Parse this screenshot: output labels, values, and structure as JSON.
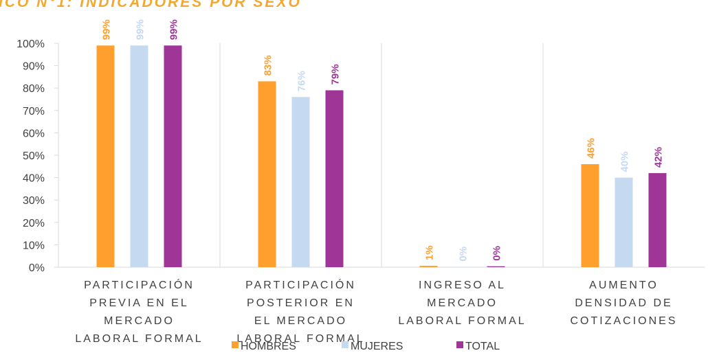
{
  "chart_data": {
    "type": "bar",
    "title": "ICO N°1: INDICADORES POR SEXO",
    "categories": [
      "PARTICIPACIÓN PREVIA EN EL MERCADO LABORAL FORMAL",
      "PARTICIPACIÓN POSTERIOR EN EL MERCADO LABORAL FORMAL",
      "INGRESO AL MERCADO LABORAL FORMAL",
      "AUMENTO DENSIDAD DE COTIZACIONES"
    ],
    "series": [
      {
        "name": "HOMBRES",
        "color": "#ffa02e",
        "values": [
          99,
          83,
          0.6,
          46
        ],
        "value_labels": [
          "99%",
          "83%",
          "1%",
          "46%"
        ]
      },
      {
        "name": "MUJERES",
        "color": "#c5d9f1",
        "values": [
          99,
          76,
          0.1,
          40
        ],
        "value_labels": [
          "99%",
          "76%",
          "0%",
          "40%"
        ]
      },
      {
        "name": "TOTAL",
        "color": "#9e3597",
        "values": [
          99,
          79,
          0.4,
          42
        ],
        "value_labels": [
          "99%",
          "79%",
          "0%",
          "42%"
        ]
      }
    ],
    "ylim": [
      0,
      100
    ],
    "yticks": [
      {
        "value": 0,
        "label": "0%"
      },
      {
        "value": 10,
        "label": "10%"
      },
      {
        "value": 20,
        "label": "20%"
      },
      {
        "value": 30,
        "label": "30%"
      },
      {
        "value": 40,
        "label": "40%"
      },
      {
        "value": 50,
        "label": "50%"
      },
      {
        "value": 60,
        "label": "60%"
      },
      {
        "value": 70,
        "label": "70%"
      },
      {
        "value": 80,
        "label": "80%"
      },
      {
        "value": 90,
        "label": "90%"
      },
      {
        "value": 100,
        "label": "100%"
      }
    ],
    "grid": false,
    "legend": "bottom"
  }
}
